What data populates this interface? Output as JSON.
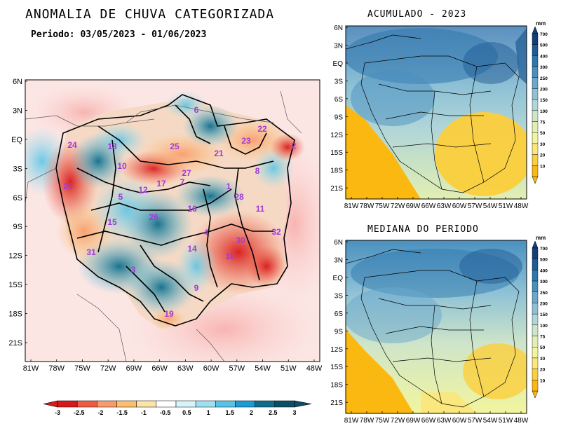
{
  "main": {
    "title": "ANOMALIA DE CHUVA CATEGORIZADA",
    "period": "Periodo: 03/05/2023 - 01/06/2023",
    "lat_labels": [
      "6N",
      "3N",
      "EQ",
      "3S",
      "6S",
      "9S",
      "12S",
      "15S",
      "18S",
      "21S"
    ],
    "lon_labels": [
      "81W",
      "78W",
      "75W",
      "72W",
      "69W",
      "66W",
      "63W",
      "60W",
      "57W",
      "54W",
      "51W",
      "48W"
    ],
    "basin_ids": [
      "6",
      "24",
      "13",
      "25",
      "21",
      "23",
      "22",
      "2",
      "10",
      "27",
      "8",
      "20",
      "12",
      "17",
      "7",
      "1",
      "5",
      "28",
      "16",
      "11",
      "15",
      "26",
      "4",
      "30",
      "32",
      "31",
      "14",
      "18",
      "3",
      "9",
      "19"
    ],
    "colorbar": {
      "labels": [
        "-3",
        "-2.5",
        "-2",
        "-1.5",
        "-1",
        "-0.5",
        "0.5",
        "1",
        "1.5",
        "2",
        "2.5",
        "3"
      ],
      "colors": [
        "#d7191c",
        "#f05a3e",
        "#f99a6a",
        "#fdbf6f",
        "#fee3a8",
        "#ffffff",
        "#d6f3f7",
        "#9ee0ef",
        "#54c3e6",
        "#1b9bd1",
        "#0f6d8a",
        "#0b4f66"
      ]
    }
  },
  "acumulado": {
    "title": "ACUMULADO - 2023",
    "unit": "mm",
    "lat_labels": [
      "6N",
      "3N",
      "EQ",
      "3S",
      "6S",
      "9S",
      "12S",
      "15S",
      "18S",
      "21S"
    ],
    "lon_labels": [
      "81W",
      "78W",
      "75W",
      "72W",
      "69W",
      "66W",
      "63W",
      "60W",
      "57W",
      "54W",
      "51W",
      "48W"
    ]
  },
  "mediana": {
    "title": "MEDIANA DO PERIODO",
    "unit": "mm",
    "lat_labels": [
      "6N",
      "3N",
      "EQ",
      "3S",
      "6S",
      "9S",
      "12S",
      "15S",
      "18S",
      "21S"
    ],
    "lon_labels": [
      "81W",
      "78W",
      "75W",
      "72W",
      "69W",
      "66W",
      "63W",
      "60W",
      "57W",
      "54W",
      "51W",
      "48W"
    ]
  },
  "mm_colorbar": {
    "labels": [
      "700",
      "500",
      "400",
      "300",
      "250",
      "200",
      "150",
      "100",
      "75",
      "50",
      "30",
      "20",
      "10"
    ],
    "colors": [
      "#143f7a",
      "#1f5b96",
      "#2d77ad",
      "#4a90bf",
      "#6aa8cd",
      "#8ec1d6",
      "#b1d6d8",
      "#cfe5c9",
      "#e2efb2",
      "#f2f59e",
      "#fbe77a",
      "#fccf3c",
      "#fbb811"
    ]
  }
}
